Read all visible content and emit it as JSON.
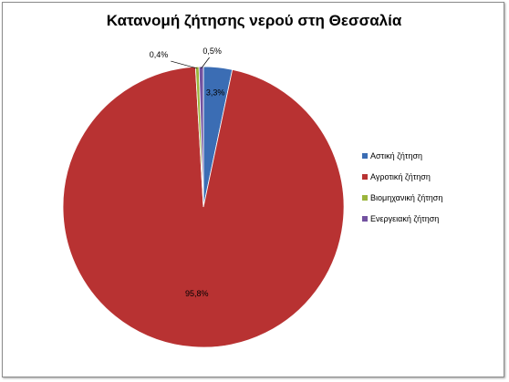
{
  "chart_data": {
    "type": "pie",
    "title": "Κατανομή ζήτησης νερού στη Θεσσαλία",
    "categories": [
      "Αστική ζήτηση",
      "Αγροτική ζήτηση",
      "Βιομηχανική ζήτηση",
      "Ενεργειακή ζήτηση"
    ],
    "values": [
      3.3,
      95.8,
      0.4,
      0.5
    ],
    "value_labels": [
      "3,3%",
      "95,8%",
      "0,4%",
      "0,5%"
    ],
    "unit": "%",
    "colors": [
      "#3b6db4",
      "#b83232",
      "#9bb53c",
      "#7352a0"
    ],
    "legend_position": "right",
    "start_angle_deg": 0,
    "direction": "clockwise"
  }
}
